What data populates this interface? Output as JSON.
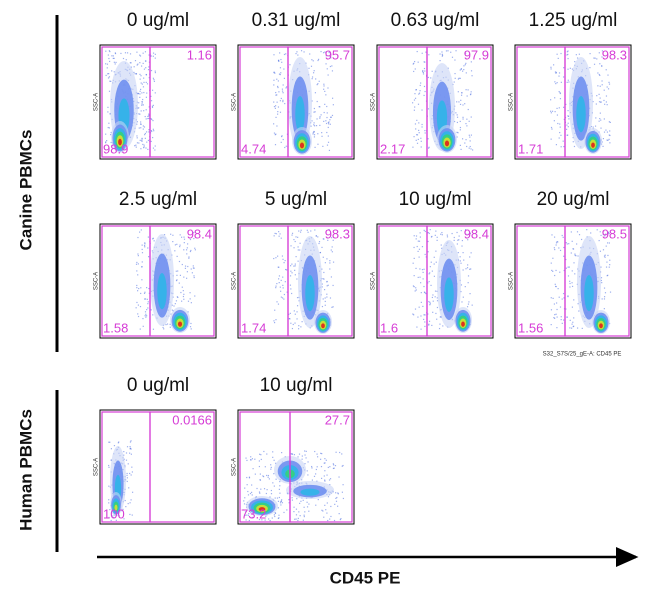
{
  "canine": {
    "label": "Canine PBMCs",
    "panels": [
      {
        "title": "0 ug/ml",
        "left": 98.9,
        "right": 1.16
      },
      {
        "title": "0.31 ug/ml",
        "left": 4.74,
        "right": 95.7
      },
      {
        "title": "0.63 ug/ml",
        "left": 2.17,
        "right": 97.9
      },
      {
        "title": "1.25 ug/ml",
        "left": 1.71,
        "right": 98.3
      },
      {
        "title": "2.5 ug/ml",
        "left": 1.58,
        "right": 98.4
      },
      {
        "title": "5 ug/ml",
        "left": 1.74,
        "right": 98.3
      },
      {
        "title": "10 ug/ml",
        "left": 1.6,
        "right": 98.4
      },
      {
        "title": "20 ug/ml",
        "left": 1.56,
        "right": 98.5
      }
    ]
  },
  "human": {
    "label": "Human PBMCs",
    "panels": [
      {
        "title": "0 ug/ml",
        "left": 100,
        "right": 0.0166
      },
      {
        "title": "10 ug/ml",
        "left": 73.2,
        "right": 27.7
      }
    ]
  },
  "y_axis_label": "SSC-A",
  "channel_label": "S32_S7S/25_gE-A: CD45 PE",
  "x_axis_label": "CD45 PE"
}
